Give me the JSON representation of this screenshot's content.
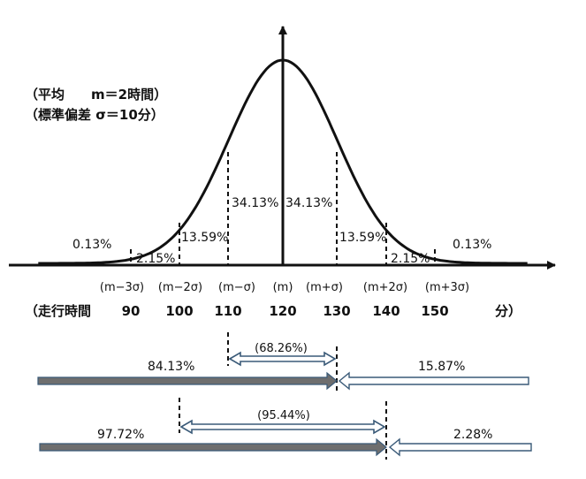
{
  "params": {
    "mean_line": "（平均　　m＝2時間）",
    "sd_line": "（標準偏差 σ＝10分）"
  },
  "curve": {
    "mean": 120,
    "sd": 10
  },
  "region_labels": {
    "left_3sd": "0.13%",
    "left_2sd": "2.15%",
    "left_1sd": "13.59%",
    "left_0": "34.13%",
    "right_0": "34.13%",
    "right_1sd": "13.59%",
    "right_2sd": "2.15%",
    "right_3sd": "0.13%"
  },
  "sigma_labels": [
    "(m−3σ)",
    "(m−2σ)",
    "(m−σ)",
    "(m)",
    "(m+σ)",
    "(m+2σ)",
    "(m+3σ)"
  ],
  "time_axis": {
    "prefix": "（走行時間",
    "values": [
      "90",
      "100",
      "110",
      "120",
      "130",
      "140",
      "150"
    ],
    "unit": "分）"
  },
  "bars": {
    "row1": {
      "center_label": "(68.26%)",
      "left_label": "84.13%",
      "right_label": "15.87%"
    },
    "row2": {
      "center_label": "(95.44%)",
      "left_label": "97.72%",
      "right_label": "2.28%"
    }
  },
  "colors": {
    "ink": "#111111",
    "bar_dark": "#6e6e6e",
    "bar_light": "#ffffff",
    "arrow_outline": "#3a5a78"
  }
}
